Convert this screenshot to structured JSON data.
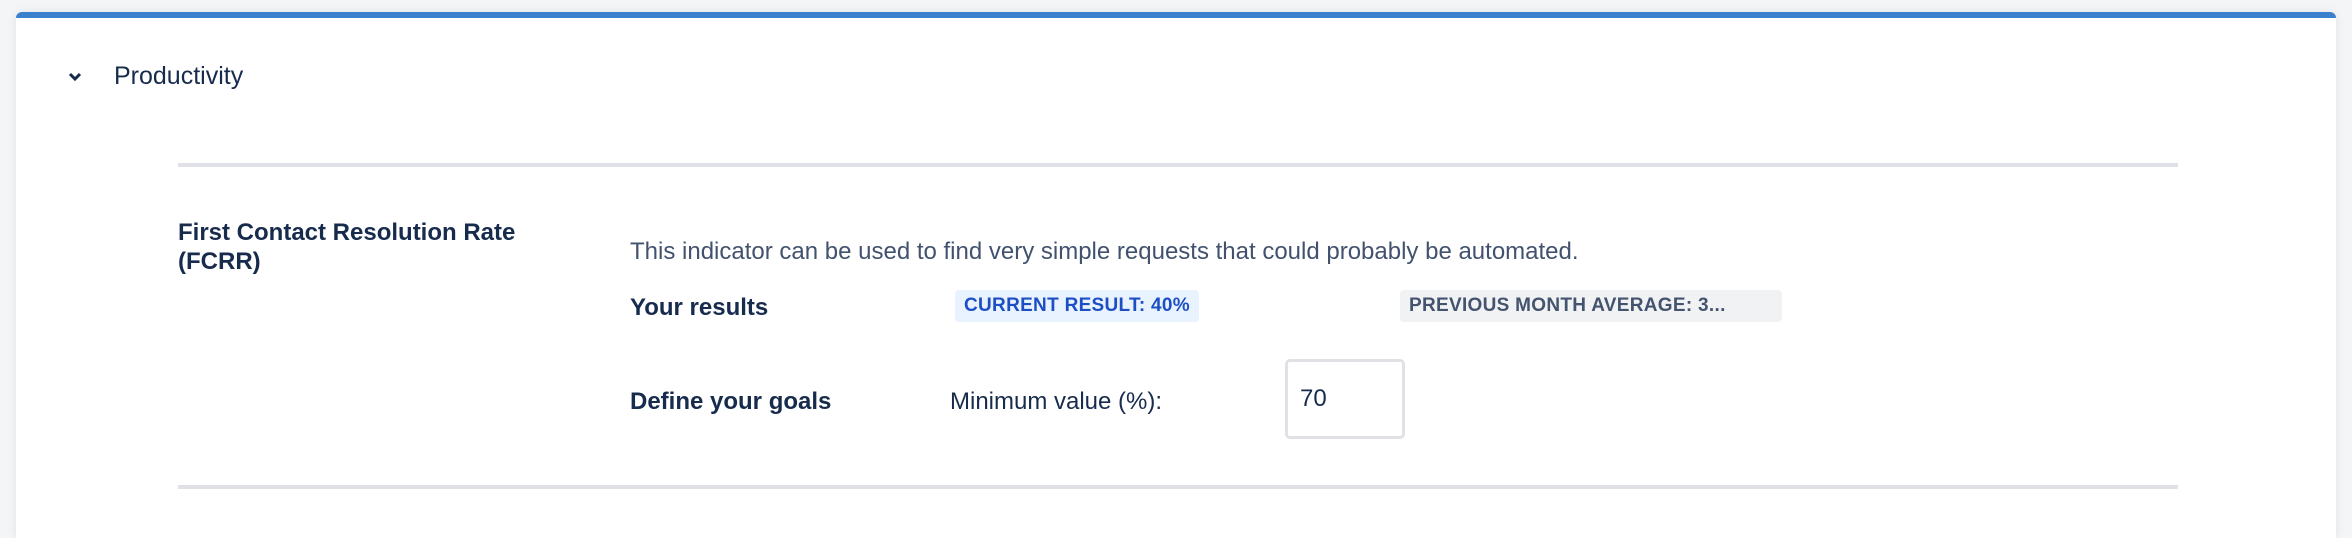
{
  "section": {
    "title": "Productivity",
    "expanded": true
  },
  "indicator": {
    "name": "First Contact Resolution Rate (FCRR)",
    "description": "This indicator can be used to find very simple requests that could probably be automated.",
    "results_label": "Your results",
    "current_result": "CURRENT RESULT: 40%",
    "previous_average": "PREVIOUS MONTH AVERAGE: 3...",
    "goals_label": "Define your goals",
    "minimum_label": "Minimum value (%):",
    "minimum_value": "70"
  },
  "colors": {
    "accent": "#3a80cc",
    "current_badge_bg": "#e9f2ff",
    "current_badge_text": "#1d4fc4"
  }
}
